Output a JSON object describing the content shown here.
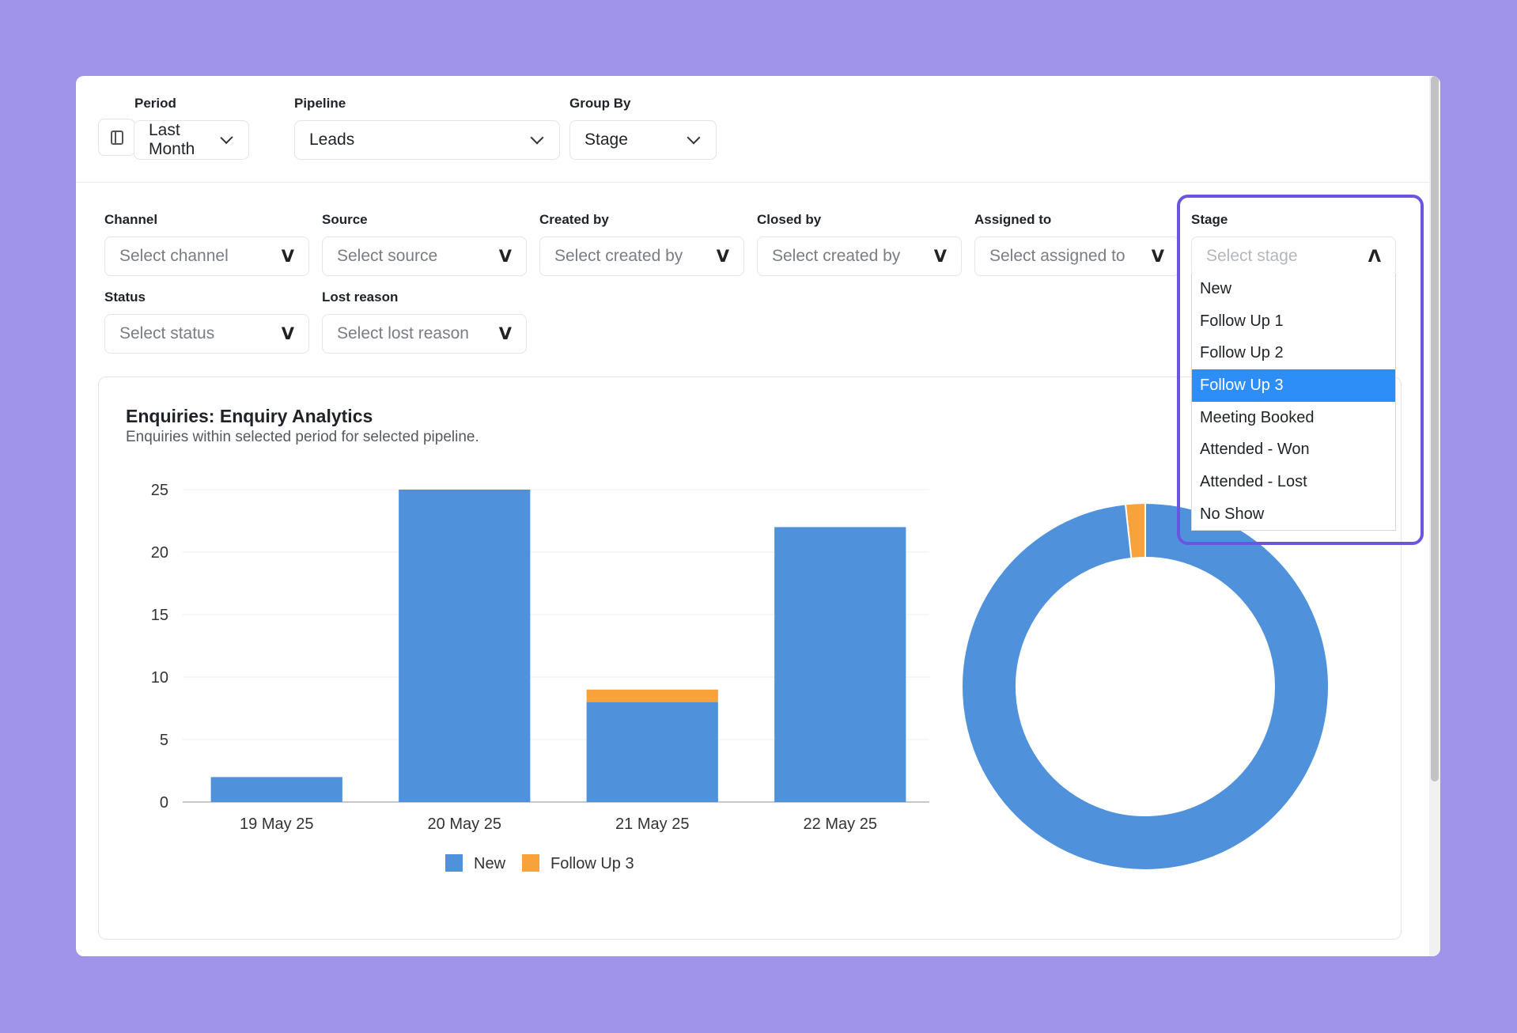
{
  "topbar": {
    "period": {
      "label": "Period",
      "value": "Last Month"
    },
    "pipeline": {
      "label": "Pipeline",
      "value": "Leads"
    },
    "group_by": {
      "label": "Group By",
      "value": "Stage"
    }
  },
  "filters": {
    "channel": {
      "label": "Channel",
      "placeholder": "Select channel"
    },
    "source": {
      "label": "Source",
      "placeholder": "Select source"
    },
    "created_by": {
      "label": "Created by",
      "placeholder": "Select created by"
    },
    "closed_by": {
      "label": "Closed by",
      "placeholder": "Select created by"
    },
    "assigned_to": {
      "label": "Assigned to",
      "placeholder": "Select assigned to"
    },
    "stage": {
      "label": "Stage",
      "placeholder": "Select stage",
      "expanded": true
    },
    "status": {
      "label": "Status",
      "placeholder": "Select status"
    },
    "lost_reason": {
      "label": "Lost reason",
      "placeholder": "Select lost reason"
    },
    "chevron_glyph": "V",
    "chevron_up_glyph": "Λ"
  },
  "stage_options": [
    "New",
    "Follow Up 1",
    "Follow Up 2",
    "Follow Up 3",
    "Meeting Booked",
    "Attended - Won",
    "Attended - Lost",
    "No Show"
  ],
  "stage_selected_index": 3,
  "card": {
    "title": "Enquiries: Enquiry Analytics",
    "subtitle": "Enquiries within selected period for selected pipeline."
  },
  "colors": {
    "new": "#4f92db",
    "follow_up_3": "#f7a23b",
    "highlight": "#6a55e0",
    "selected": "#2e8ef7"
  },
  "chart_data": [
    {
      "type": "bar",
      "stacked": true,
      "categories": [
        "19 May 25",
        "20 May 25",
        "21 May 25",
        "22 May 25"
      ],
      "series": [
        {
          "name": "New",
          "values": [
            2,
            25,
            8,
            22
          ]
        },
        {
          "name": "Follow Up 3",
          "values": [
            0,
            0,
            1,
            0
          ]
        }
      ],
      "yticks": [
        0,
        5,
        10,
        15,
        20,
        25
      ],
      "ylim": [
        0,
        25
      ],
      "grid": true,
      "legend": "bottom"
    },
    {
      "type": "pie",
      "donut": true,
      "slices": [
        {
          "name": "New",
          "value": 57
        },
        {
          "name": "Follow Up 3",
          "value": 1
        }
      ]
    }
  ]
}
